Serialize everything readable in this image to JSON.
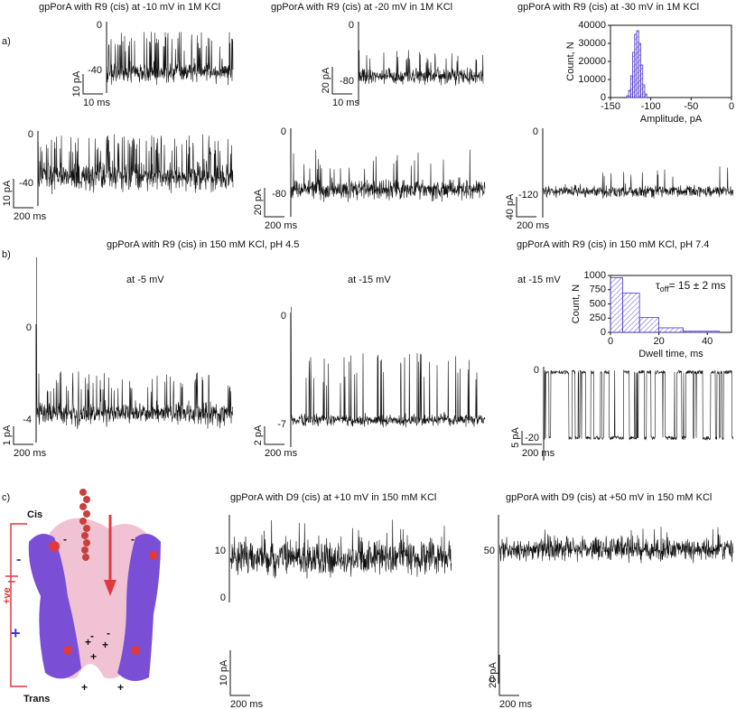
{
  "panel_a": {
    "label": "a)",
    "titles": [
      "gpPorA with R9 (cis) at -10 mV in 1M KCl",
      "gpPorA with R9 (cis) at -20 mV in 1M KCl",
      "gpPorA with R9 (cis) at -30 mV in 1M KCl"
    ],
    "traces": [
      {
        "ticks": [
          "0",
          "-40"
        ],
        "scale_y": "10 pA",
        "scale_x": "10 ms"
      },
      {
        "ticks": [
          "0",
          "-80"
        ],
        "scale_y": "20 pA",
        "scale_x": "10 ms"
      },
      {
        "ticks": [
          "0",
          "-40"
        ],
        "scale_y": "10 pA",
        "scale_x": "200 ms"
      },
      {
        "ticks": [
          "0",
          "-80"
        ],
        "scale_y": "20 pA",
        "scale_x": "200 ms"
      },
      {
        "ticks": [
          "0",
          "-120"
        ],
        "scale_y": "40 pA",
        "scale_x": "200 ms"
      }
    ],
    "histogram": {
      "xlabel": "Amplitude, pA",
      "ylabel": "Count, N",
      "xlim": [
        -150,
        0
      ],
      "ylim": [
        0,
        40000
      ],
      "xticks": [
        -150,
        -100,
        -50,
        0
      ],
      "yticks": [
        0,
        10000,
        20000,
        30000,
        40000
      ],
      "bins": [
        -130,
        -127.5,
        -125,
        -122.5,
        -120,
        -117.5,
        -115,
        -112.5,
        -110,
        -107.5,
        -105
      ],
      "counts": [
        1000,
        4000,
        12000,
        25000,
        35000,
        37000,
        30000,
        18000,
        7000,
        2000
      ]
    }
  },
  "panel_b": {
    "label": "b)",
    "titles": [
      "gpPorA with R9 (cis) in 150 mM KCl, pH 4.5",
      "gpPorA with R9 (cis) in 150 mM KCl, pH 7.4"
    ],
    "conditions": [
      "at -5 mV",
      "at -15 mV",
      "at -15 mV"
    ],
    "traces": [
      {
        "ticks": [
          "0",
          "-4"
        ],
        "scale_y": "1 pA",
        "scale_x": "200 ms"
      },
      {
        "ticks": [
          "0",
          "-7"
        ],
        "scale_y": "2 pA",
        "scale_x": "200 ms"
      },
      {
        "ticks": [
          "0",
          "-20"
        ],
        "scale_y": "5 pA",
        "scale_x": "200 ms"
      }
    ],
    "histogram": {
      "xlabel": "Dwell time, ms",
      "ylabel": "Count, N",
      "xlim": [
        0,
        50
      ],
      "ylim": [
        0,
        1000
      ],
      "xticks": [
        0,
        20,
        40
      ],
      "yticks": [
        0,
        250,
        500,
        750,
        1000
      ],
      "bins": [
        0,
        5,
        12,
        20,
        30,
        45
      ],
      "counts": [
        960,
        690,
        260,
        80,
        20
      ],
      "annotation": {
        "symbol": "τ",
        "subscript": "off",
        "text": "= 15 ± 2 ms"
      }
    }
  },
  "panel_c": {
    "label": "c)",
    "titles": [
      "gpPorA with D9 (cis) at +10 mV in 150 mM KCl",
      "gpPorA with D9 (cis) at +50 mV in 150 mM KCl"
    ],
    "traces": [
      {
        "ticks": [
          "10",
          "0"
        ],
        "scale_y": "10 pA",
        "scale_x": "200 ms"
      },
      {
        "ticks": [
          "50",
          "0"
        ],
        "scale_y": "20 pA",
        "scale_x": "200 ms"
      }
    ],
    "diagram": {
      "cis": "Cis",
      "trans": "Trans",
      "voltage": "+ve",
      "minus": "-",
      "plus": "+",
      "charges": [
        "-",
        "-",
        "-",
        "-",
        "+",
        "+",
        "+",
        "+",
        "+"
      ]
    }
  }
}
